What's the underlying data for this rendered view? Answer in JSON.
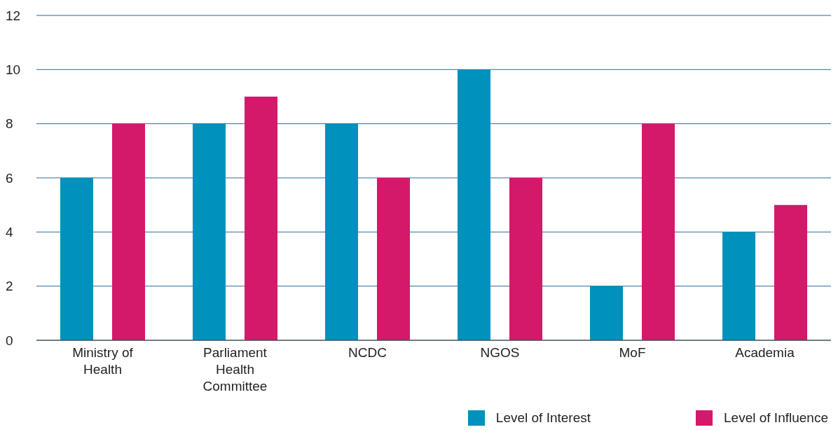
{
  "chart_data": {
    "type": "bar",
    "categories": [
      "Ministry of Health",
      "Parliament Health Committee",
      "NCDC",
      "NGOS",
      "MoF",
      "Academia"
    ],
    "series": [
      {
        "name": "Level of Interest",
        "color": "#0091bd",
        "values": [
          6,
          8,
          8,
          10,
          2,
          4
        ]
      },
      {
        "name": "Level of Influence",
        "color": "#d4186a",
        "values": [
          8,
          9,
          6,
          6,
          8,
          5
        ]
      }
    ],
    "ylim": [
      0,
      12
    ],
    "yticks": [
      0,
      2,
      4,
      6,
      8,
      10,
      12
    ],
    "grid": "y",
    "legend": "bottom right"
  }
}
